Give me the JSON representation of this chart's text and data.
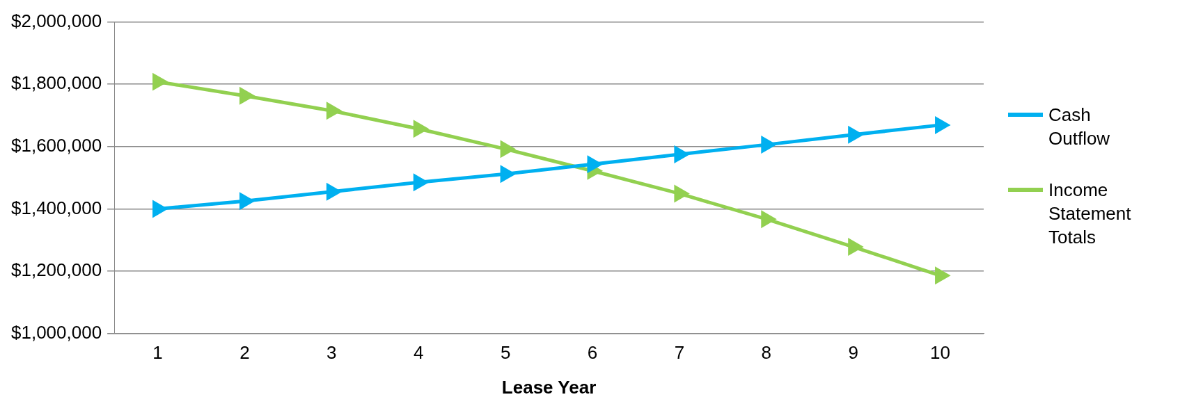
{
  "chart_data": {
    "type": "line",
    "xlabel": "Lease Year",
    "categories": [
      "1",
      "2",
      "3",
      "4",
      "5",
      "6",
      "7",
      "8",
      "9",
      "10"
    ],
    "series": [
      {
        "name": "Cash Outflow",
        "color": "#00b0f0",
        "values": [
          1400000,
          1425000,
          1455000,
          1485000,
          1512000,
          1543000,
          1575000,
          1606000,
          1638000,
          1669000
        ]
      },
      {
        "name": "Income Statement Totals",
        "color": "#92d050",
        "values": [
          1808000,
          1763000,
          1715000,
          1657000,
          1592000,
          1522000,
          1449000,
          1367000,
          1278000,
          1186000
        ]
      }
    ],
    "ylim": [
      1000000,
      2000000
    ],
    "yticks": [
      {
        "value": 1000000,
        "label": "$1,000,000"
      },
      {
        "value": 1200000,
        "label": "$1,200,000"
      },
      {
        "value": 1400000,
        "label": "$1,400,000"
      },
      {
        "value": 1600000,
        "label": "$1,600,000"
      },
      {
        "value": 1800000,
        "label": "$1,800,000"
      },
      {
        "value": 2000000,
        "label": "$2,000,000"
      }
    ],
    "grid": "y",
    "legend": "right",
    "marker": "triangle",
    "line_style": "solid"
  }
}
